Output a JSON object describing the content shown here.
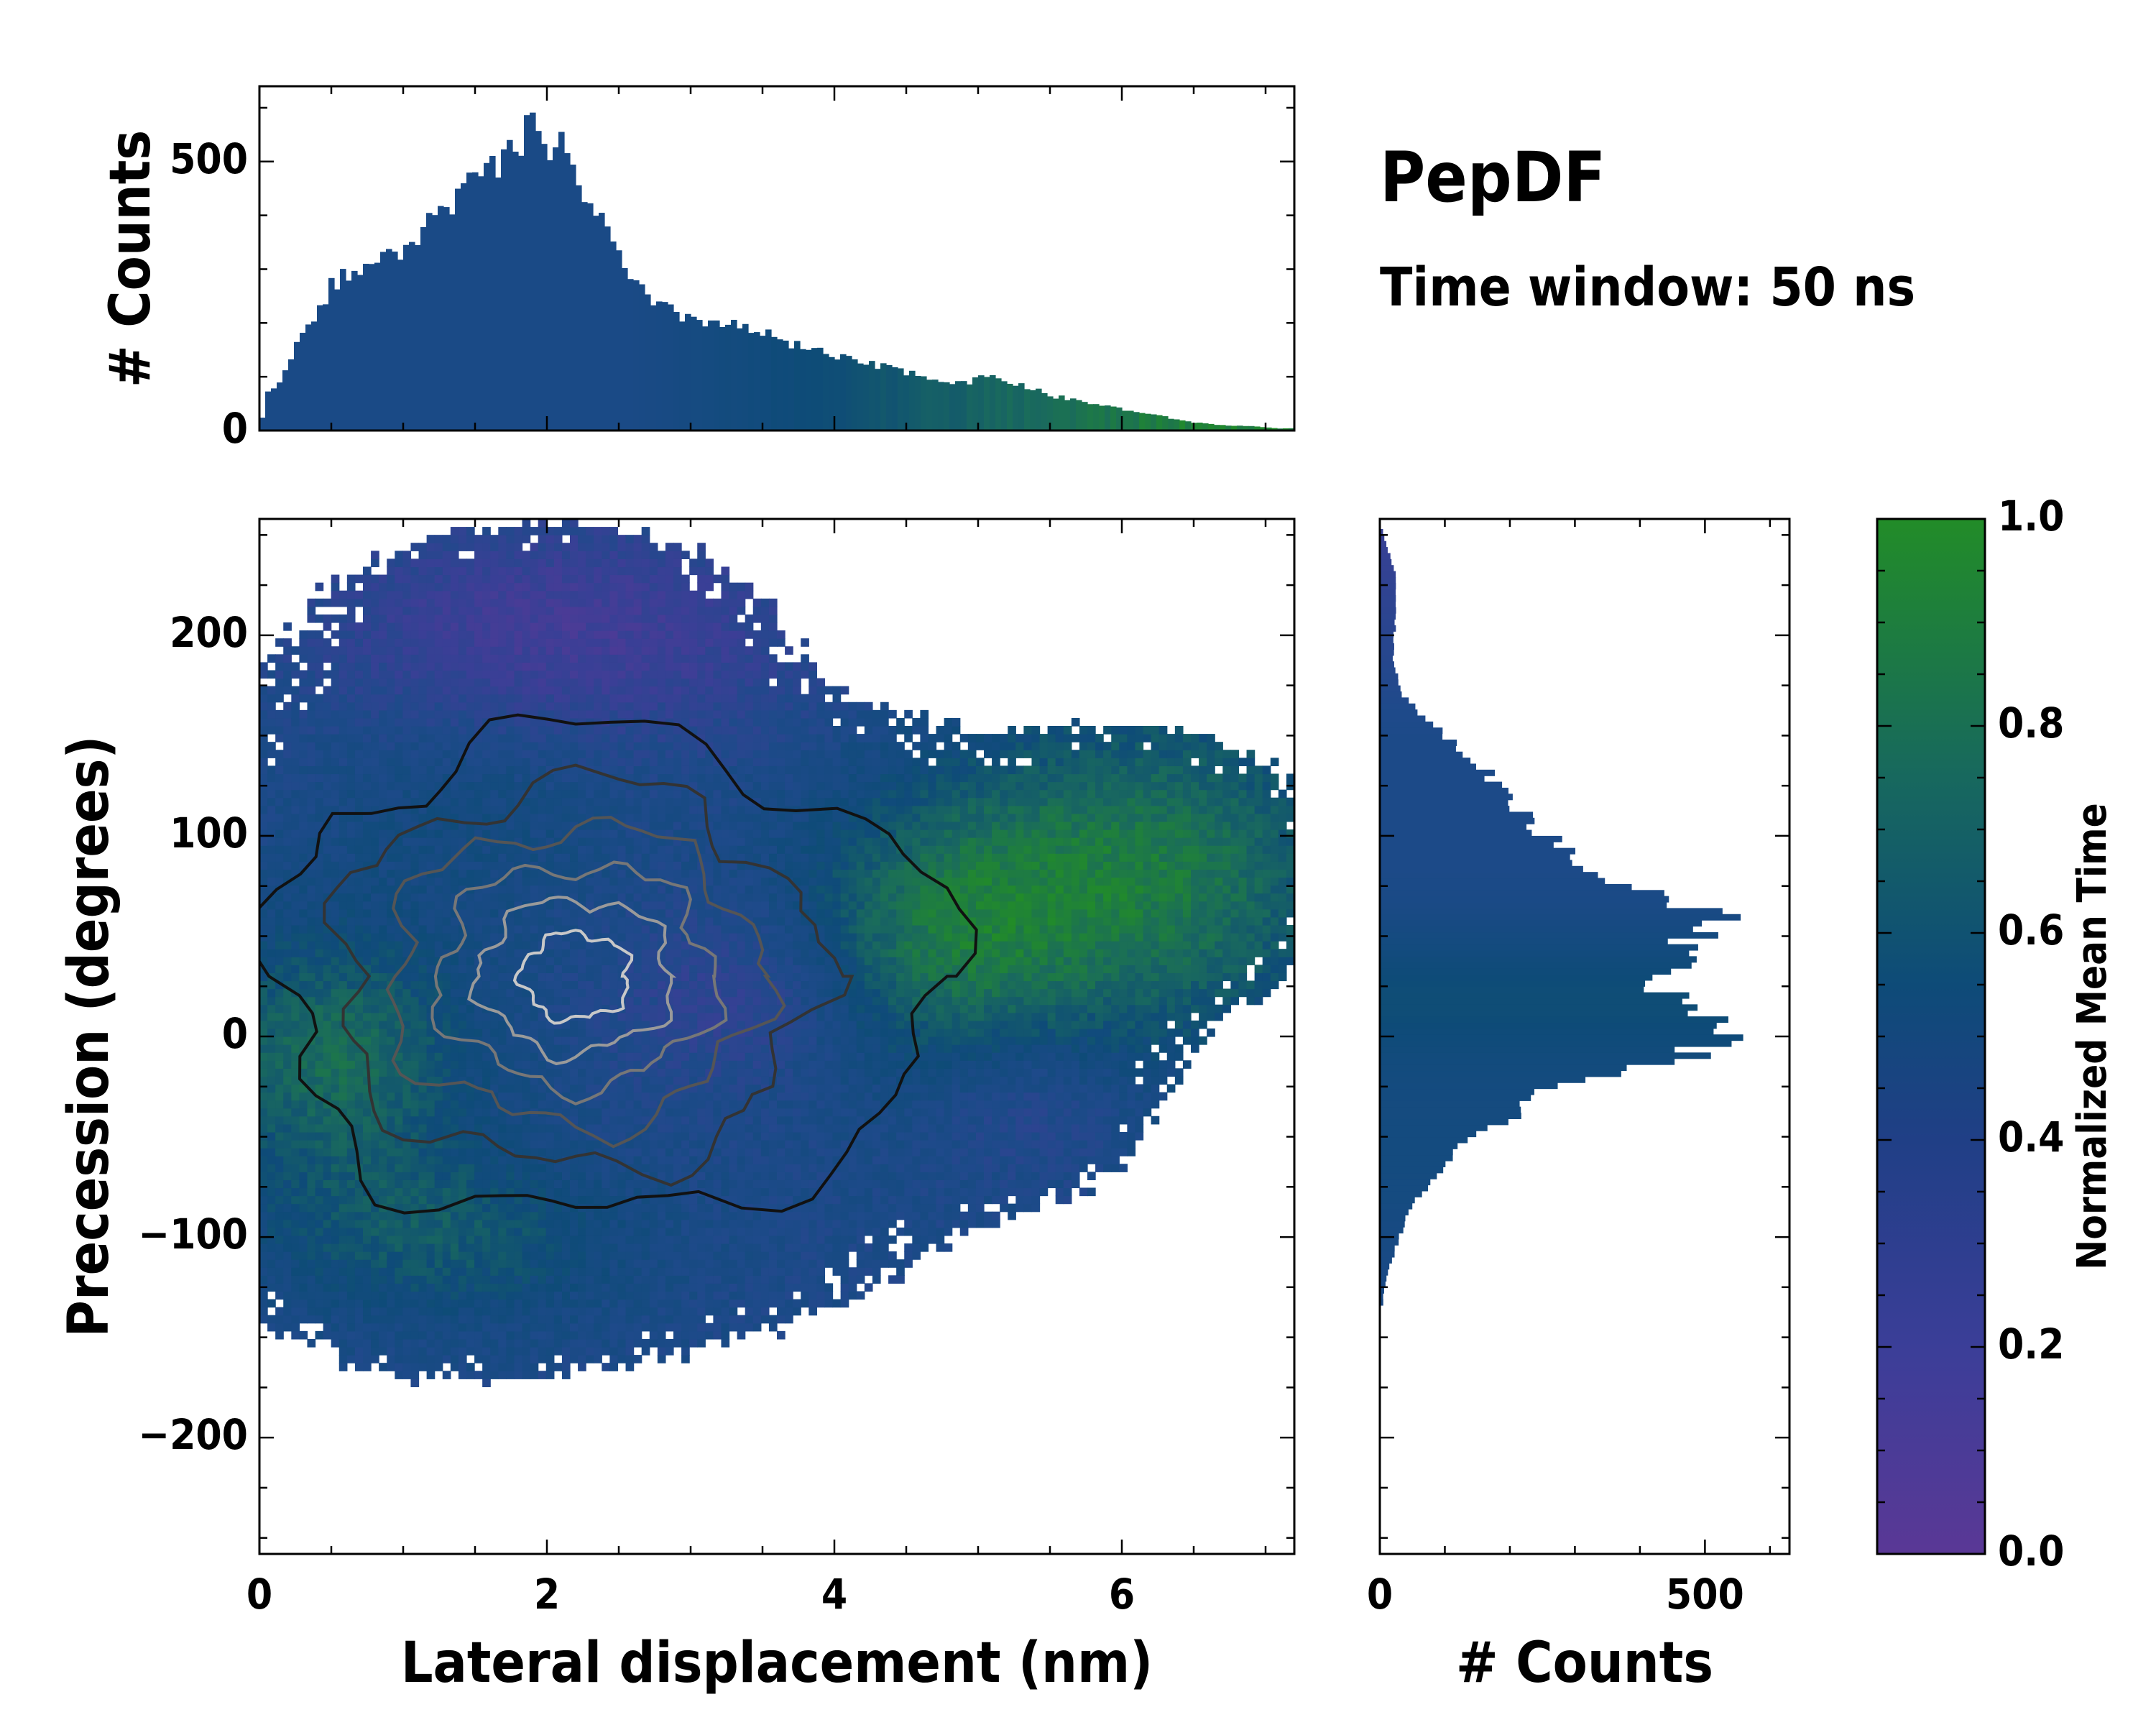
{
  "chart_data": [
    {
      "type": "heatmap",
      "id": "main",
      "xlabel": "Lateral displacement (nm)",
      "ylabel": "Precession (degrees)",
      "xlim": [
        0,
        7.2
      ],
      "ylim": [
        -258,
        258
      ],
      "xticks": [
        "0",
        "2",
        "4",
        "6"
      ],
      "yticks": [
        "−200",
        "−100",
        "0",
        "100",
        "200"
      ],
      "xtick_values": [
        0,
        2,
        4,
        6
      ],
      "ytick_values": [
        -200,
        -100,
        0,
        100,
        200
      ],
      "colormap": "purple-blue-green (mean time 0.0 → 1.0)",
      "density_peak": {
        "x": 2.0,
        "y": 40
      },
      "contour_levels": 6
    },
    {
      "type": "bar",
      "id": "top_histogram",
      "ylabel": "# Counts",
      "yticks": [
        "0",
        "500"
      ],
      "ytick_values": [
        0,
        500
      ],
      "ylim": [
        0,
        640
      ],
      "x_bin_centers": [
        0.1,
        0.3,
        0.5,
        0.7,
        0.9,
        1.1,
        1.3,
        1.5,
        1.7,
        1.9,
        2.1,
        2.3,
        2.5,
        2.7,
        2.9,
        3.1,
        3.3,
        3.5,
        3.7,
        3.9,
        4.1,
        4.3,
        4.5,
        4.7,
        4.9,
        5.1,
        5.3,
        5.5,
        5.7,
        5.9,
        6.1,
        6.3,
        6.5,
        6.7,
        6.9,
        7.1
      ],
      "values": [
        75,
        180,
        270,
        300,
        320,
        360,
        420,
        460,
        500,
        560,
        520,
        430,
        320,
        240,
        215,
        205,
        195,
        180,
        160,
        145,
        130,
        120,
        110,
        95,
        90,
        100,
        85,
        65,
        55,
        45,
        35,
        25,
        15,
        10,
        8,
        4
      ]
    },
    {
      "type": "bar",
      "id": "right_histogram",
      "orientation": "horizontal",
      "xlabel": "# Counts",
      "xticks": [
        "0",
        "500"
      ],
      "xtick_values": [
        0,
        500
      ],
      "xlim": [
        0,
        630
      ],
      "y_bin_centers": [
        250,
        230,
        210,
        190,
        170,
        150,
        130,
        110,
        90,
        70,
        60,
        50,
        40,
        30,
        20,
        10,
        0,
        -10,
        -20,
        -30,
        -40,
        -50,
        -60,
        -70,
        -80,
        -90,
        -100,
        -110,
        -120,
        -130
      ],
      "values": [
        5,
        25,
        25,
        20,
        35,
        100,
        170,
        220,
        300,
        420,
        550,
        480,
        470,
        420,
        450,
        500,
        520,
        470,
        340,
        230,
        200,
        140,
        110,
        80,
        60,
        40,
        30,
        20,
        10,
        5
      ]
    }
  ],
  "header": {
    "title": "PepDF",
    "subtitle": "Time window: 50 ns"
  },
  "colorbar": {
    "label": "Normalized Mean Time",
    "ticks": [
      "0.0",
      "0.2",
      "0.4",
      "0.6",
      "0.8",
      "1.0"
    ],
    "tick_values": [
      0.0,
      0.2,
      0.4,
      0.6,
      0.8,
      1.0
    ],
    "colors": [
      "#5a3896",
      "#3a3f96",
      "#1e4a8a",
      "#0e4b78",
      "#1a6b5c",
      "#228c28"
    ]
  }
}
